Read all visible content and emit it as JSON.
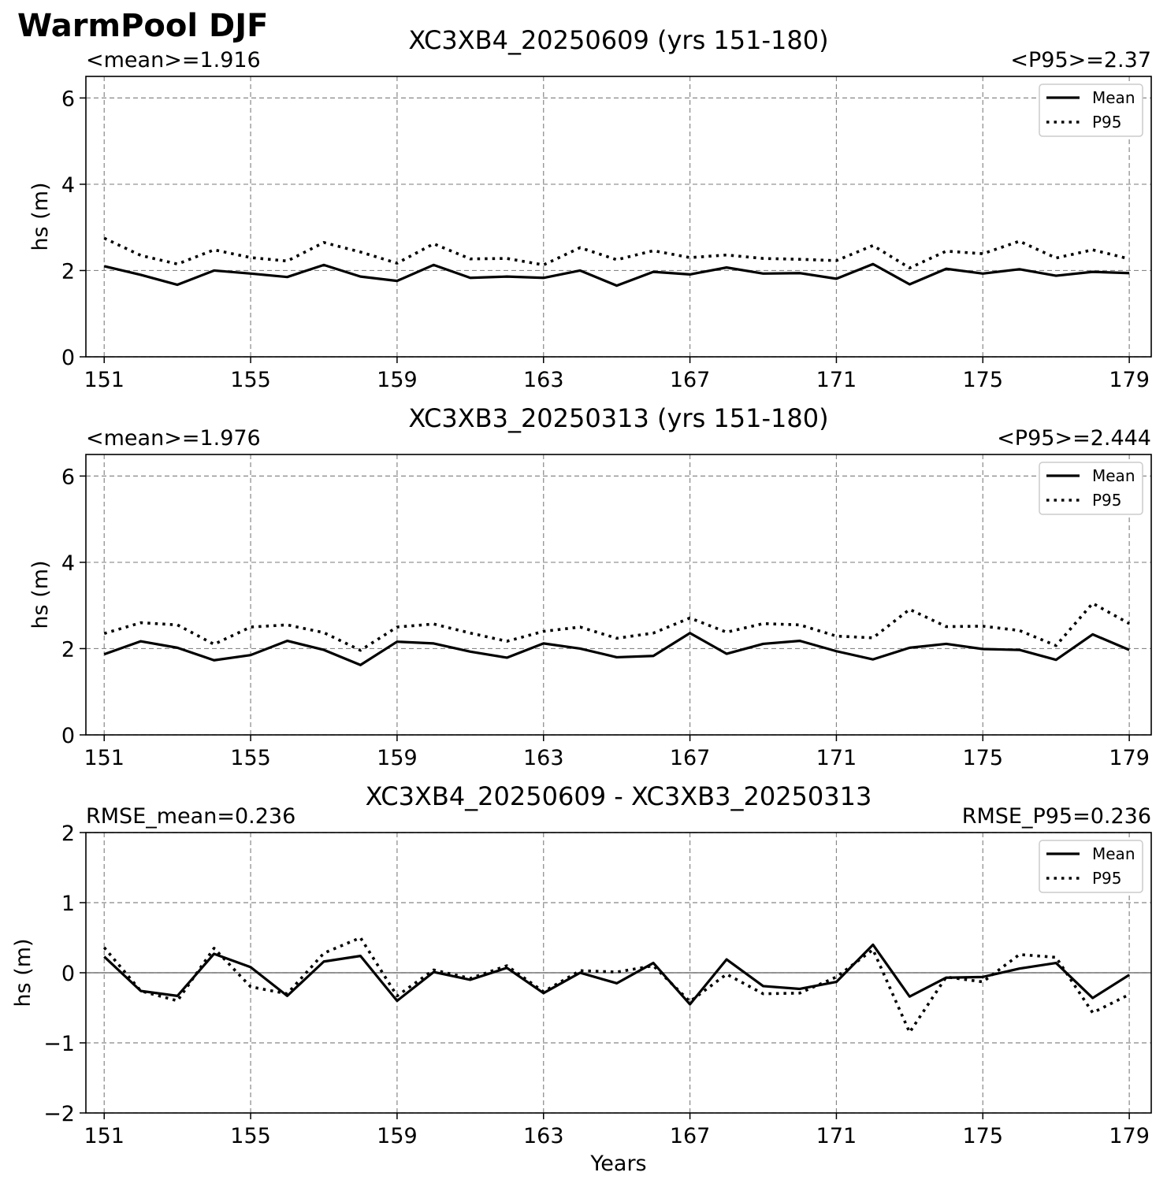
{
  "figure": {
    "title": "WarmPool DJF"
  },
  "chart_data": [
    {
      "type": "line",
      "title": "XC3XB4_20250609 (yrs 151-180)",
      "left_annotation": "<mean>=1.916",
      "right_annotation": "<P95>=2.37",
      "xlabel": "",
      "ylabel": "hs (m)",
      "xlim": [
        150.5,
        179.6
      ],
      "ylim": [
        0,
        6.5
      ],
      "xticks": [
        151,
        155,
        159,
        163,
        167,
        171,
        175,
        179
      ],
      "xtick_labels": [
        "151",
        "155",
        "159",
        "163",
        "167",
        "171",
        "175",
        "179"
      ],
      "yticks": [
        0,
        2,
        4,
        6
      ],
      "ytick_labels": [
        "0",
        "2",
        "4",
        "6"
      ],
      "grid": true,
      "zero_line": false,
      "legend": {
        "placement": "top-right",
        "entries": [
          "Mean",
          "P95"
        ]
      },
      "x": [
        151,
        152,
        153,
        154,
        155,
        156,
        157,
        158,
        159,
        160,
        161,
        162,
        163,
        164,
        165,
        166,
        167,
        168,
        169,
        170,
        171,
        172,
        173,
        174,
        175,
        176,
        177,
        178,
        179
      ],
      "series": [
        {
          "name": "Mean",
          "style": "solid",
          "values": [
            2.1,
            1.9,
            1.67,
            2.0,
            1.93,
            1.85,
            2.13,
            1.86,
            1.76,
            2.13,
            1.83,
            1.86,
            1.83,
            2.0,
            1.65,
            1.97,
            1.91,
            2.07,
            1.93,
            1.94,
            1.81,
            2.15,
            1.68,
            2.04,
            1.93,
            2.03,
            1.88,
            1.97,
            1.94
          ]
        },
        {
          "name": "P95",
          "style": "dotted",
          "values": [
            2.75,
            2.35,
            2.15,
            2.48,
            2.3,
            2.22,
            2.65,
            2.43,
            2.17,
            2.62,
            2.27,
            2.28,
            2.13,
            2.53,
            2.25,
            2.46,
            2.3,
            2.36,
            2.28,
            2.26,
            2.23,
            2.58,
            2.06,
            2.45,
            2.39,
            2.68,
            2.29,
            2.48,
            2.27
          ]
        }
      ]
    },
    {
      "type": "line",
      "title": "XC3XB3_20250313 (yrs 151-180)",
      "left_annotation": "<mean>=1.976",
      "right_annotation": "<P95>=2.444",
      "xlabel": "",
      "ylabel": "hs (m)",
      "xlim": [
        150.5,
        179.6
      ],
      "ylim": [
        0,
        6.5
      ],
      "xticks": [
        151,
        155,
        159,
        163,
        167,
        171,
        175,
        179
      ],
      "xtick_labels": [
        "151",
        "155",
        "159",
        "163",
        "167",
        "171",
        "175",
        "179"
      ],
      "yticks": [
        0,
        2,
        4,
        6
      ],
      "ytick_labels": [
        "0",
        "2",
        "4",
        "6"
      ],
      "grid": true,
      "zero_line": false,
      "legend": {
        "placement": "top-right",
        "entries": [
          "Mean",
          "P95"
        ]
      },
      "x": [
        151,
        152,
        153,
        154,
        155,
        156,
        157,
        158,
        159,
        160,
        161,
        162,
        163,
        164,
        165,
        166,
        167,
        168,
        169,
        170,
        171,
        172,
        173,
        174,
        175,
        176,
        177,
        178,
        179
      ],
      "series": [
        {
          "name": "Mean",
          "style": "solid",
          "values": [
            1.87,
            2.17,
            2.02,
            1.73,
            1.85,
            2.18,
            1.97,
            1.62,
            2.16,
            2.12,
            1.93,
            1.79,
            2.12,
            2.0,
            1.8,
            1.83,
            2.36,
            1.88,
            2.11,
            2.18,
            1.94,
            1.75,
            2.02,
            2.11,
            1.99,
            1.97,
            1.74,
            2.33,
            1.97
          ]
        },
        {
          "name": "P95",
          "style": "dotted",
          "values": [
            2.35,
            2.6,
            2.55,
            2.1,
            2.5,
            2.55,
            2.37,
            1.96,
            2.5,
            2.57,
            2.36,
            2.17,
            2.4,
            2.5,
            2.24,
            2.36,
            2.71,
            2.38,
            2.58,
            2.55,
            2.29,
            2.25,
            2.91,
            2.51,
            2.52,
            2.42,
            2.07,
            3.05,
            2.58
          ]
        }
      ]
    },
    {
      "type": "line",
      "title": "XC3XB4_20250609 - XC3XB3_20250313",
      "left_annotation": "RMSE_mean=0.236",
      "right_annotation": "RMSE_P95=0.236",
      "xlabel": "Years",
      "ylabel": "hs (m)",
      "xlim": [
        150.5,
        179.6
      ],
      "ylim": [
        -2,
        2
      ],
      "xticks": [
        151,
        155,
        159,
        163,
        167,
        171,
        175,
        179
      ],
      "xtick_labels": [
        "151",
        "155",
        "159",
        "163",
        "167",
        "171",
        "175",
        "179"
      ],
      "yticks": [
        -2,
        -1,
        0,
        1,
        2
      ],
      "ytick_labels": [
        "−2",
        "−1",
        "0",
        "1",
        "2"
      ],
      "grid": true,
      "zero_line": true,
      "legend": {
        "placement": "top-right",
        "entries": [
          "Mean",
          "P95"
        ]
      },
      "x": [
        151,
        152,
        153,
        154,
        155,
        156,
        157,
        158,
        159,
        160,
        161,
        162,
        163,
        164,
        165,
        166,
        167,
        168,
        169,
        170,
        171,
        172,
        173,
        174,
        175,
        176,
        177,
        178,
        179
      ],
      "series": [
        {
          "name": "Mean",
          "style": "solid",
          "values": [
            0.23,
            -0.26,
            -0.33,
            0.27,
            0.08,
            -0.33,
            0.16,
            0.24,
            -0.4,
            0.01,
            -0.1,
            0.07,
            -0.29,
            0.0,
            -0.15,
            0.14,
            -0.45,
            0.19,
            -0.19,
            -0.23,
            -0.13,
            0.4,
            -0.34,
            -0.07,
            -0.06,
            0.06,
            0.14,
            -0.36,
            -0.03
          ]
        },
        {
          "name": "P95",
          "style": "dotted",
          "values": [
            0.36,
            -0.26,
            -0.4,
            0.35,
            -0.2,
            -0.3,
            0.28,
            0.5,
            -0.33,
            0.04,
            -0.08,
            0.1,
            -0.27,
            0.03,
            0.01,
            0.1,
            -0.41,
            -0.02,
            -0.3,
            -0.29,
            -0.06,
            0.33,
            -0.85,
            -0.06,
            -0.13,
            0.26,
            0.22,
            -0.57,
            -0.31
          ]
        }
      ]
    }
  ]
}
